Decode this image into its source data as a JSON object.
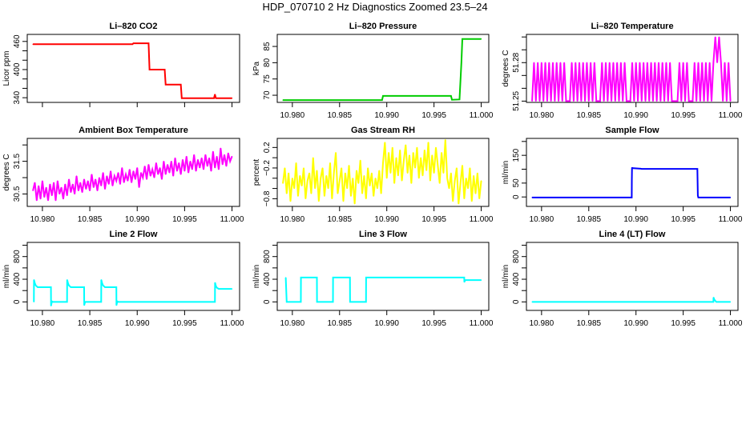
{
  "figure_title": "HDP_070710  2 Hz Diagnostics Zoomed 23.5–24",
  "chart_data": [
    {
      "type": "line",
      "title": "Li–820 CO2",
      "ylabel": "Licor ppm",
      "color": "#ff0000",
      "x": [
        10.979,
        10.9895,
        10.9896,
        10.9912,
        10.9913,
        10.9929,
        10.993,
        10.9946,
        10.9947,
        10.9981,
        10.9982,
        10.9983,
        11.0
      ],
      "y": [
        454,
        454,
        456,
        456,
        400,
        400,
        368,
        368,
        339,
        339,
        347,
        339,
        339
      ],
      "xlim": [
        10.9784,
        11.0008
      ],
      "ylim": [
        330,
        475
      ],
      "xticks": [
        10.98,
        10.985,
        10.99,
        10.995,
        11.0
      ],
      "xtick_labels": [
        "",
        "",
        "",
        "",
        ""
      ],
      "yticks": [
        340,
        360,
        380,
        400,
        420,
        440,
        460
      ],
      "ytick_labels": [
        "340",
        "",
        "",
        "400",
        "",
        "",
        "460"
      ]
    },
    {
      "type": "line",
      "title": "Li–820 Pressure",
      "ylabel": "kPa",
      "color": "#00cc00",
      "x": [
        10.979,
        10.9895,
        10.9896,
        10.9968,
        10.9969,
        10.9977,
        10.9979,
        10.998,
        11.0
      ],
      "y": [
        68.5,
        68.5,
        69.8,
        69.8,
        68.6,
        68.7,
        80,
        87.3,
        87.3
      ],
      "xlim": [
        10.9784,
        11.0008
      ],
      "ylim": [
        67.8,
        88.7
      ],
      "xticks": [
        10.98,
        10.985,
        10.99,
        10.995,
        11.0
      ],
      "xtick_labels": [
        "10.980",
        "10.985",
        "10.990",
        "10.995",
        "11.000"
      ],
      "yticks": [
        70,
        75,
        80,
        85
      ],
      "ytick_labels": [
        "70",
        "75",
        "80",
        "85"
      ]
    },
    {
      "type": "line",
      "title": "Li–820 Temperature",
      "ylabel": "degrees C",
      "color": "#ff00ff",
      "x_start": 10.979,
      "x_step": 0.0002,
      "y": [
        51.25,
        51.28,
        51.25,
        51.28,
        51.25,
        51.28,
        51.25,
        51.28,
        51.25,
        51.28,
        51.25,
        51.28,
        51.25,
        51.28,
        51.25,
        51.28,
        51.25,
        51.28,
        51.25,
        51.25,
        51.25,
        51.28,
        51.25,
        51.28,
        51.25,
        51.28,
        51.25,
        51.28,
        51.25,
        51.28,
        51.25,
        51.28,
        51.25,
        51.28,
        51.25,
        51.25,
        51.25,
        51.28,
        51.25,
        51.28,
        51.25,
        51.28,
        51.25,
        51.28,
        51.25,
        51.28,
        51.25,
        51.28,
        51.25,
        51.28,
        51.25,
        51.25,
        51.25,
        51.28,
        51.25,
        51.28,
        51.25,
        51.28,
        51.25,
        51.28,
        51.25,
        51.28,
        51.25,
        51.28,
        51.25,
        51.28,
        51.25,
        51.28,
        51.25,
        51.28,
        51.25,
        51.28,
        51.25,
        51.28,
        51.25,
        51.25,
        51.25,
        51.25,
        51.28,
        51.25,
        51.28,
        51.25,
        51.28,
        51.25,
        51.25,
        51.25,
        51.28,
        51.25,
        51.28,
        51.25,
        51.28,
        51.25,
        51.28,
        51.25,
        51.28,
        51.25,
        51.28,
        51.3,
        51.28,
        51.3,
        51.28,
        51.25,
        51.28,
        51.25,
        51.28,
        51.25
      ],
      "xlim": [
        10.9784,
        11.0008
      ],
      "ylim": [
        51.249,
        51.302
      ],
      "xticks": [
        10.98,
        10.985,
        10.99,
        10.995,
        11.0
      ],
      "xtick_labels": [
        "10.980",
        "10.985",
        "10.990",
        "10.995",
        "11.000"
      ],
      "yticks": [
        51.25,
        51.26,
        51.27,
        51.28,
        51.29,
        51.3
      ],
      "ytick_labels": [
        "51.25",
        "",
        "",
        "51.28",
        "",
        ""
      ]
    },
    {
      "type": "line",
      "title": "Ambient Box Temperature",
      "ylabel": "degrees C",
      "color": "#ff00ff",
      "x_start": 10.979,
      "x_step": 0.0002,
      "y": [
        30.6,
        30.85,
        30.3,
        30.75,
        30.35,
        30.9,
        30.4,
        30.7,
        30.3,
        30.8,
        30.45,
        30.85,
        30.3,
        30.9,
        30.5,
        30.7,
        30.35,
        30.8,
        30.45,
        30.95,
        30.55,
        30.8,
        30.5,
        31.05,
        30.6,
        30.85,
        30.55,
        30.95,
        30.65,
        30.9,
        30.6,
        31.1,
        30.7,
        30.95,
        30.6,
        31.0,
        30.75,
        31.15,
        30.65,
        31.05,
        30.8,
        31.2,
        30.75,
        31.05,
        30.9,
        31.15,
        30.8,
        31.3,
        30.85,
        31.1,
        30.9,
        31.25,
        30.85,
        31.2,
        30.95,
        31.3,
        30.7,
        31.15,
        31.0,
        31.35,
        30.95,
        31.4,
        31.05,
        31.25,
        31.0,
        31.45,
        31.1,
        31.3,
        30.95,
        31.5,
        31.1,
        31.4,
        31.15,
        31.5,
        31.05,
        31.6,
        31.2,
        31.45,
        31.1,
        31.55,
        31.2,
        31.65,
        31.15,
        31.5,
        31.25,
        31.7,
        31.2,
        31.55,
        31.3,
        31.6,
        31.25,
        31.7,
        31.35,
        31.6,
        31.2,
        31.8,
        31.3,
        31.65,
        31.25,
        31.9,
        31.4,
        31.7,
        31.35,
        31.75,
        31.5,
        31.65
      ],
      "xlim": [
        10.9784,
        11.0008
      ],
      "ylim": [
        30.12,
        32.2
      ],
      "xticks": [
        10.98,
        10.985,
        10.99,
        10.995,
        11.0
      ],
      "xtick_labels": [
        "10.980",
        "10.985",
        "10.990",
        "10.995",
        "11.000"
      ],
      "yticks": [
        30.5,
        31.0,
        31.5,
        32.0
      ],
      "ytick_labels": [
        "30.5",
        "",
        "31.5",
        ""
      ]
    },
    {
      "type": "line",
      "title": "Gas Stream RH",
      "ylabel": "percent",
      "color": "#ffff00",
      "x_start": 10.979,
      "x_step": 0.0002,
      "y": [
        -0.5,
        -0.2,
        -0.7,
        -0.3,
        -0.85,
        -0.4,
        -0.6,
        -0.1,
        -0.75,
        -0.35,
        -0.55,
        -0.2,
        -0.8,
        -0.45,
        -0.3,
        -0.7,
        0.0,
        -0.6,
        -0.25,
        -0.85,
        -0.4,
        -0.2,
        -0.75,
        -0.35,
        -0.6,
        -0.1,
        -0.8,
        -0.3,
        0.1,
        -0.7,
        -0.45,
        -0.2,
        -0.85,
        -0.3,
        -0.6,
        -0.15,
        -0.75,
        -0.4,
        -0.9,
        -0.25,
        -0.5,
        -0.05,
        -0.7,
        -0.35,
        -0.8,
        -0.2,
        -0.55,
        -0.3,
        -0.75,
        -0.4,
        -0.6,
        -0.25,
        -0.7,
        -0.1,
        0.3,
        -0.4,
        0.1,
        -0.3,
        0.2,
        -0.5,
        0.0,
        -0.35,
        0.15,
        -0.45,
        -0.05,
        0.25,
        -0.3,
        0.05,
        -0.5,
        0.1,
        -0.2,
        0.2,
        -0.4,
        0.0,
        -0.35,
        0.15,
        -0.25,
        0.3,
        -0.45,
        0.05,
        -0.3,
        0.2,
        -0.15,
        -0.5,
        0.1,
        -0.3,
        0.35,
        -0.4,
        -0.6,
        -0.3,
        -0.85,
        -0.45,
        -0.2,
        -0.9,
        -0.5,
        -0.15,
        -0.8,
        -0.4,
        -0.6,
        -0.2,
        -0.85,
        -0.35,
        -0.7,
        -0.3,
        -0.8,
        -0.45
      ],
      "xlim": [
        10.9784,
        11.0008
      ],
      "ylim": [
        -0.95,
        0.377
      ],
      "xticks": [
        10.98,
        10.985,
        10.99,
        10.995,
        11.0
      ],
      "xtick_labels": [
        "10.980",
        "10.985",
        "10.990",
        "10.995",
        "11.000"
      ],
      "yticks": [
        -0.8,
        -0.6,
        -0.4,
        -0.2,
        0.0,
        0.2
      ],
      "ytick_labels": [
        "−0.8",
        "",
        "",
        "−0.2",
        "",
        "0.2"
      ]
    },
    {
      "type": "line",
      "title": "Sample Flow",
      "ylabel": "ml/min",
      "color": "#0000ff",
      "x": [
        10.979,
        10.98955,
        10.98956,
        10.98958,
        10.9896,
        10.9905,
        10.9906,
        10.9965,
        10.99655,
        10.9966,
        11.0
      ],
      "y": [
        -2,
        -2,
        60,
        106,
        104,
        102,
        101,
        101,
        5,
        -2,
        -2
      ],
      "xlim": [
        10.9784,
        11.0008
      ],
      "ylim": [
        -34,
        211
      ],
      "xticks": [
        10.98,
        10.985,
        10.99,
        10.995,
        11.0
      ],
      "xtick_labels": [
        "10.980",
        "10.985",
        "10.990",
        "10.995",
        "11.000"
      ],
      "yticks": [
        0,
        50,
        100,
        150,
        200
      ],
      "ytick_labels": [
        "0",
        "50",
        "",
        "150",
        ""
      ]
    },
    {
      "type": "line",
      "title": "Line 2 Flow",
      "ylabel": "ml/min",
      "color": "#00ffff",
      "x": [
        10.9791,
        10.97911,
        10.9792,
        10.9793,
        10.9795,
        10.9809,
        10.98091,
        10.981,
        10.9811,
        10.9826,
        10.98261,
        10.9827,
        10.9828,
        10.983,
        10.9844,
        10.98441,
        10.9845,
        10.9862,
        10.98621,
        10.9863,
        10.9864,
        10.9866,
        10.9878,
        10.98781,
        10.9879,
        10.988,
        10.9982,
        10.99821,
        10.9983,
        10.9984,
        10.9986,
        11.0
      ],
      "y": [
        0,
        390,
        330,
        290,
        260,
        260,
        -70,
        10,
        0,
        0,
        390,
        330,
        290,
        260,
        260,
        -60,
        0,
        0,
        390,
        330,
        290,
        260,
        260,
        -60,
        10,
        0,
        0,
        340,
        280,
        250,
        230,
        230
      ],
      "xlim": [
        10.9784,
        11.0008
      ],
      "ylim": [
        -150,
        1050
      ],
      "xticks": [
        10.98,
        10.985,
        10.99,
        10.995,
        11.0
      ],
      "xtick_labels": [
        "10.980",
        "10.985",
        "10.990",
        "10.995",
        "11.000"
      ],
      "yticks": [
        0,
        200,
        400,
        600,
        800,
        1000
      ],
      "ytick_labels": [
        "0",
        "",
        "400",
        "",
        "800",
        ""
      ]
    },
    {
      "type": "line",
      "title": "Line 3 Flow",
      "ylabel": "ml/min",
      "color": "#00ffff",
      "x": [
        10.9793,
        10.9794,
        10.9809,
        10.98091,
        10.9826,
        10.98261,
        10.9843,
        10.98431,
        10.9861,
        10.98611,
        10.9878,
        10.98781,
        10.9982,
        10.99821,
        10.9983,
        11.0
      ],
      "y": [
        430,
        0,
        0,
        430,
        430,
        0,
        0,
        430,
        430,
        0,
        0,
        430,
        430,
        350,
        385,
        385
      ],
      "xlim": [
        10.9784,
        11.0008
      ],
      "ylim": [
        -150,
        1050
      ],
      "xticks": [
        10.98,
        10.985,
        10.99,
        10.995,
        11.0
      ],
      "xtick_labels": [
        "10.980",
        "10.985",
        "10.990",
        "10.995",
        "11.000"
      ],
      "yticks": [
        0,
        200,
        400,
        600,
        800,
        1000
      ],
      "ytick_labels": [
        "0",
        "",
        "400",
        "",
        "800",
        ""
      ]
    },
    {
      "type": "line",
      "title": "Line 4 (LT) Flow",
      "ylabel": "ml/min",
      "color": "#00ffff",
      "x": [
        10.979,
        10.9982,
        10.99821,
        10.9983,
        10.9984,
        10.9985,
        11.0
      ],
      "y": [
        0,
        0,
        80,
        40,
        20,
        0,
        0
      ],
      "xlim": [
        10.9784,
        11.0008
      ],
      "ylim": [
        -150,
        1050
      ],
      "xticks": [
        10.98,
        10.985,
        10.99,
        10.995,
        11.0
      ],
      "xtick_labels": [
        "10.980",
        "10.985",
        "10.990",
        "10.995",
        "11.000"
      ],
      "yticks": [
        0,
        200,
        400,
        600,
        800,
        1000
      ],
      "ytick_labels": [
        "0",
        "",
        "400",
        "",
        "800",
        ""
      ]
    }
  ]
}
